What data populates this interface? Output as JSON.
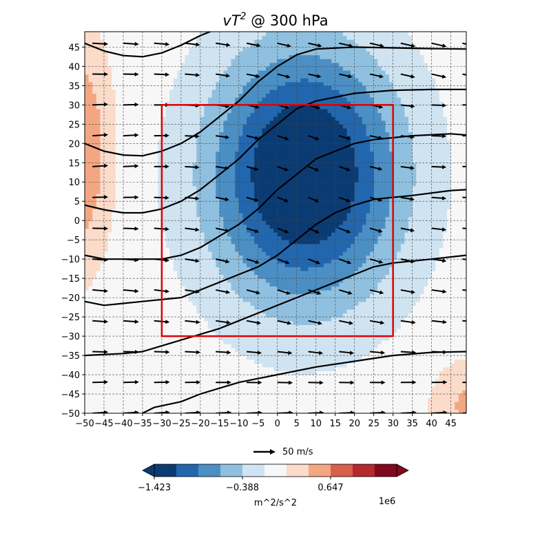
{
  "chart_data": {
    "type": "heatmap",
    "title_main": "vT",
    "title_sup": "2",
    "title_rest": " @ 300 hPa",
    "xlim": [
      -50,
      49
    ],
    "ylim": [
      -50,
      49
    ],
    "x_ticks": [
      -50,
      -45,
      -40,
      -35,
      -30,
      -25,
      -20,
      -15,
      -10,
      -5,
      0,
      5,
      10,
      15,
      20,
      25,
      30,
      35,
      40,
      45
    ],
    "y_ticks": [
      -50,
      -45,
      -40,
      -35,
      -30,
      -25,
      -20,
      -15,
      -10,
      -5,
      0,
      5,
      10,
      15,
      20,
      25,
      30,
      35,
      40,
      45
    ],
    "grid": true,
    "field": {
      "description_units": "m^2/s^2",
      "scale_label": "1e6",
      "negative_center": {
        "x": 7,
        "y": 12,
        "peak": -1.6,
        "sx": 17,
        "sy": 23
      },
      "positive_edge_west": {
        "x": -52,
        "y": 18,
        "peak": 0.7,
        "sx": 6,
        "sy": 20
      },
      "positive_corner_se": {
        "x": 50,
        "y": -48,
        "peak": 0.45,
        "sx": 7,
        "sy": 8
      }
    },
    "contour_levels": [
      -1.423,
      -1.164,
      -0.906,
      -0.647,
      -0.388,
      -0.129,
      0.129,
      0.388,
      0.647,
      0.906,
      1.164,
      1.423
    ],
    "colors": [
      "#0b3b73",
      "#2267ae",
      "#4b8fc4",
      "#90c0df",
      "#d0e3f1",
      "#f7f7f7",
      "#fbdbc9",
      "#f4a683",
      "#d75f4c",
      "#b42a2f",
      "#82081f"
    ],
    "colorbar": {
      "tick_values": [
        -1.423,
        -0.388,
        0.647
      ],
      "tick_labels": [
        "−1.423",
        "−0.388",
        "0.647"
      ],
      "label": "m^2/s^2",
      "offset_label": "1e6",
      "extend": "both"
    },
    "streamlines": [
      {
        "points": [
          [
            -50,
            46
          ],
          [
            -45,
            44
          ],
          [
            -40,
            42.8
          ],
          [
            -35,
            42.5
          ],
          [
            -30,
            43.5
          ],
          [
            -25,
            45.5
          ],
          [
            -20,
            48
          ],
          [
            -15,
            50
          ]
        ]
      },
      {
        "points": [
          [
            -50,
            20
          ],
          [
            -45,
            18
          ],
          [
            -40,
            17
          ],
          [
            -35,
            16.8
          ],
          [
            -30,
            18
          ],
          [
            -25,
            20
          ],
          [
            -20,
            23
          ],
          [
            -15,
            27
          ],
          [
            -10,
            31
          ],
          [
            -5,
            36
          ],
          [
            0,
            40
          ],
          [
            5,
            43
          ],
          [
            10,
            44.5
          ],
          [
            20,
            45
          ],
          [
            30,
            44.8
          ],
          [
            40,
            44.6
          ],
          [
            49,
            44.5
          ]
        ]
      },
      {
        "points": [
          [
            -50,
            4
          ],
          [
            -45,
            2.8
          ],
          [
            -40,
            2
          ],
          [
            -35,
            2
          ],
          [
            -30,
            3
          ],
          [
            -25,
            5
          ],
          [
            -20,
            8
          ],
          [
            -15,
            12
          ],
          [
            -10,
            16
          ],
          [
            -5,
            21
          ],
          [
            0,
            25
          ],
          [
            5,
            29
          ],
          [
            10,
            31
          ],
          [
            20,
            33
          ],
          [
            30,
            33.8
          ],
          [
            40,
            34
          ],
          [
            49,
            34
          ]
        ]
      },
      {
        "points": [
          [
            -50,
            -9
          ],
          [
            -45,
            -10
          ],
          [
            -35,
            -10
          ],
          [
            -30,
            -10
          ],
          [
            -25,
            -9
          ],
          [
            -20,
            -7
          ],
          [
            -15,
            -4
          ],
          [
            -10,
            -1
          ],
          [
            -5,
            3
          ],
          [
            0,
            8
          ],
          [
            5,
            12
          ],
          [
            10,
            16
          ],
          [
            15,
            18
          ],
          [
            20,
            20
          ],
          [
            25,
            21
          ],
          [
            35,
            22
          ],
          [
            45,
            22.5
          ],
          [
            49,
            22.2
          ]
        ]
      },
      {
        "points": [
          [
            -50,
            -21
          ],
          [
            -45,
            -22
          ],
          [
            -40,
            -21.5
          ],
          [
            -35,
            -21
          ],
          [
            -25,
            -20
          ],
          [
            -20,
            -18
          ],
          [
            -15,
            -16
          ],
          [
            -10,
            -14
          ],
          [
            -5,
            -12
          ],
          [
            0,
            -9
          ],
          [
            5,
            -5
          ],
          [
            10,
            -1
          ],
          [
            15,
            2
          ],
          [
            20,
            4
          ],
          [
            25,
            5.5
          ],
          [
            35,
            6.5
          ],
          [
            45,
            7.8
          ],
          [
            49,
            8
          ]
        ]
      },
      {
        "points": [
          [
            -50,
            -35
          ],
          [
            -40,
            -34.5
          ],
          [
            -35,
            -34
          ],
          [
            -30,
            -32.5
          ],
          [
            -25,
            -31
          ],
          [
            -20,
            -29.5
          ],
          [
            -15,
            -28
          ],
          [
            -10,
            -26
          ],
          [
            -5,
            -24
          ],
          [
            0,
            -22
          ],
          [
            5,
            -20
          ],
          [
            10,
            -18
          ],
          [
            15,
            -16
          ],
          [
            20,
            -14
          ],
          [
            25,
            -12
          ],
          [
            30,
            -11
          ],
          [
            40,
            -10
          ],
          [
            49,
            -9
          ]
        ]
      },
      {
        "points": [
          [
            -35,
            -50
          ],
          [
            -32,
            -48.5
          ],
          [
            -25,
            -47
          ],
          [
            -20,
            -45
          ],
          [
            -15,
            -43.5
          ],
          [
            -10,
            -42
          ],
          [
            -5,
            -41
          ],
          [
            0,
            -40
          ],
          [
            10,
            -38
          ],
          [
            20,
            -36.5
          ],
          [
            30,
            -35
          ],
          [
            40,
            -34.2
          ],
          [
            49,
            -34
          ]
        ]
      }
    ],
    "vector_grid": {
      "x_start": -48,
      "x_step": 8,
      "y_start": 46,
      "y_step": -8
    },
    "quiver_key": {
      "label": "50 m/s"
    },
    "box": {
      "x0": -30,
      "x1": 30,
      "y0": -30,
      "y1": 30,
      "color": "#e00000"
    }
  }
}
